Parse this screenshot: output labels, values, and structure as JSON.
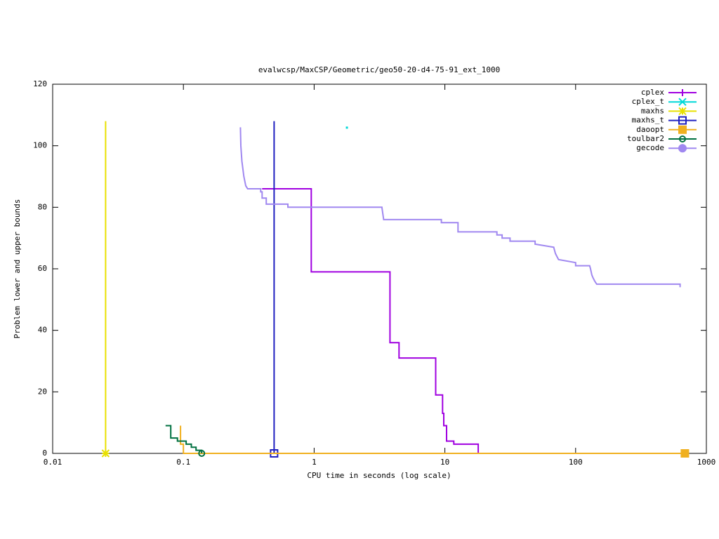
{
  "chart_data": {
    "type": "line",
    "title": "evalwcsp/MaxCSP/Geometric/geo50-20-d4-75-91_ext_1000",
    "x_label": "CPU time in seconds (log scale)",
    "y_label": "Problem lower and upper bounds",
    "log_x": true,
    "xlim": [
      0.01,
      1000
    ],
    "ylim": [
      0,
      120
    ],
    "xticks": [
      0.01,
      0.1,
      1,
      10,
      100,
      1000
    ],
    "yticks": [
      0,
      20,
      40,
      60,
      80,
      100,
      120
    ],
    "legend": "top-right",
    "series": [
      {
        "name": "cplex",
        "color": "#a000e0",
        "marker": "plus",
        "end_marker": false,
        "x": [
          0.4,
          0.95,
          0.95,
          3.8,
          3.8,
          4.46,
          4.46,
          8.5,
          8.5,
          9.6,
          9.6,
          9.8,
          9.8,
          10.3,
          10.3,
          11.7,
          11.7,
          18,
          18
        ],
        "values": [
          86,
          86,
          59,
          59,
          36,
          36,
          31,
          31,
          19,
          19,
          13,
          13,
          9,
          9,
          4,
          4,
          3,
          3,
          0
        ]
      },
      {
        "name": "cplex_t",
        "color": "#00d8d8",
        "marker": "cross",
        "end_marker": false,
        "x": [
          1.77
        ],
        "values": [
          106
        ]
      },
      {
        "name": "maxhs",
        "color": "#e8e000",
        "marker": "star",
        "end_marker": true,
        "x": [
          0.0254,
          0.0254
        ],
        "values": [
          108,
          0
        ]
      },
      {
        "name": "maxhs_t",
        "color": "#2020c0",
        "marker": "square",
        "end_marker": true,
        "x": [
          0.494,
          0.494
        ],
        "values": [
          108,
          0
        ]
      },
      {
        "name": "daoopt",
        "color": "#f0b020",
        "marker": "filled-square",
        "end_marker": true,
        "x": [
          0.095,
          0.095,
          0.1,
          0.1,
          0.104,
          685
        ],
        "values": [
          9,
          3,
          3,
          0,
          0,
          0
        ]
      },
      {
        "name": "toulbar2",
        "color": "#007040",
        "marker": "circle",
        "end_marker": true,
        "x": [
          0.073,
          0.08,
          0.08,
          0.09,
          0.09,
          0.105,
          0.105,
          0.115,
          0.115,
          0.125,
          0.125,
          0.138,
          0.138
        ],
        "values": [
          9,
          9,
          5,
          5,
          4,
          4,
          3,
          3,
          2,
          2,
          1,
          1,
          0
        ]
      },
      {
        "name": "gecode",
        "color": "#a088f0",
        "marker": "filled-circle",
        "end_marker": false,
        "x": [
          0.273,
          0.275,
          0.28,
          0.29,
          0.3,
          0.31,
          0.39,
          0.39,
          0.4,
          0.4,
          0.43,
          0.43,
          0.63,
          0.63,
          3.3,
          3.4,
          9.4,
          9.4,
          12.6,
          12.6,
          25,
          25,
          27.4,
          27.4,
          31.5,
          31.5,
          49,
          49,
          68,
          70,
          72,
          74,
          100,
          100,
          128,
          130,
          133,
          136,
          140,
          145,
          630,
          630
        ],
        "values": [
          106,
          100,
          95,
          90,
          87,
          86,
          86,
          85,
          85,
          83,
          83,
          81,
          81,
          80,
          80,
          76,
          76,
          75,
          75,
          72,
          72,
          71,
          71,
          70,
          70,
          69,
          69,
          68,
          67,
          65,
          64,
          63,
          62,
          61,
          61,
          60,
          58,
          57,
          56,
          55,
          55,
          54
        ]
      }
    ]
  }
}
